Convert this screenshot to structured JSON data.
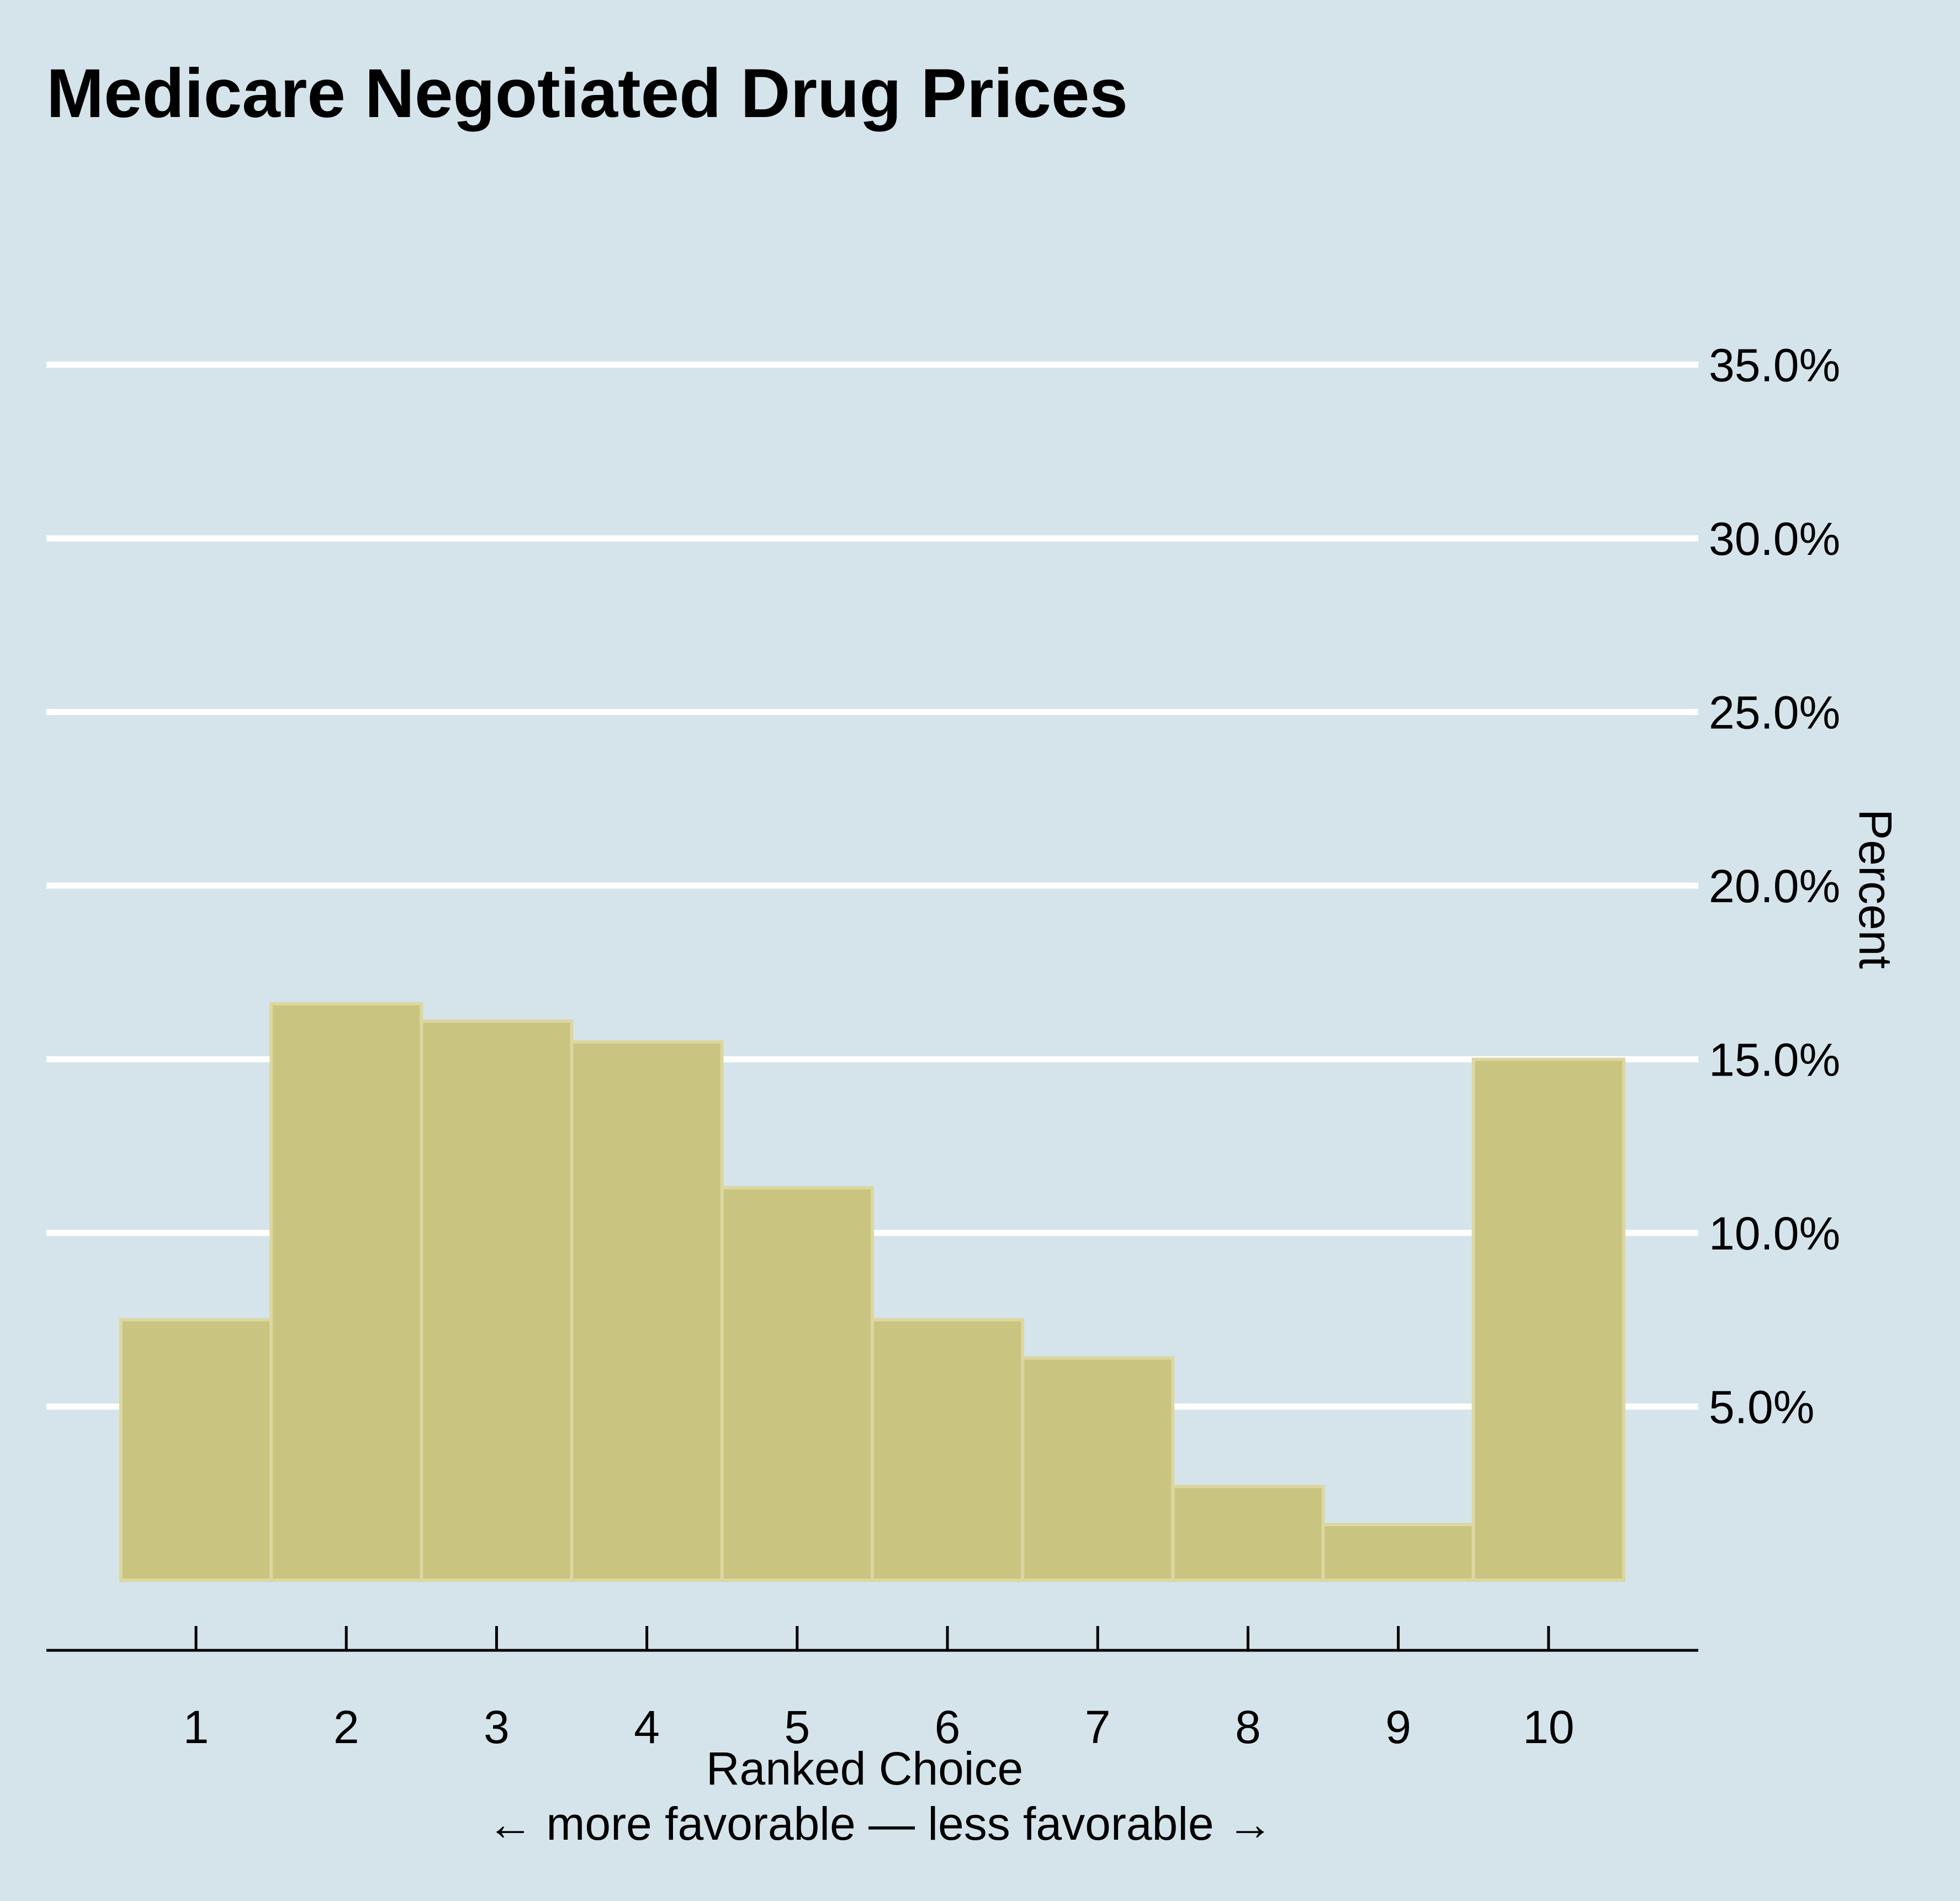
{
  "chart_data": {
    "type": "bar",
    "title": "Medicare Negotiated Drug Prices",
    "xlabel": "Ranked Choice",
    "xlabel_note": "← more favorable — less favorable →",
    "ylabel": "Percent",
    "categories": [
      "1",
      "2",
      "3",
      "4",
      "5",
      "6",
      "7",
      "8",
      "9",
      "10"
    ],
    "values": [
      7.5,
      16.6,
      16.1,
      15.5,
      11.3,
      7.5,
      6.4,
      2.7,
      1.6,
      15.0
    ],
    "y_ticks": [
      5,
      10,
      15,
      20,
      25,
      30,
      35
    ],
    "y_tick_labels": [
      "5.0%",
      "10.0%",
      "15.0%",
      "20.0%",
      "25.0%",
      "30.0%",
      "35.0%"
    ],
    "ylim": [
      0,
      35
    ],
    "y_axis_side": "right",
    "grid": "horizontal",
    "legend": "none",
    "colors": {
      "background": "#d5e4eb",
      "bar_fill": "#c9c47f",
      "bar_stroke": "#dcd7a0",
      "grid": "#ffffff",
      "axis": "#000000",
      "text": "#000000"
    }
  }
}
